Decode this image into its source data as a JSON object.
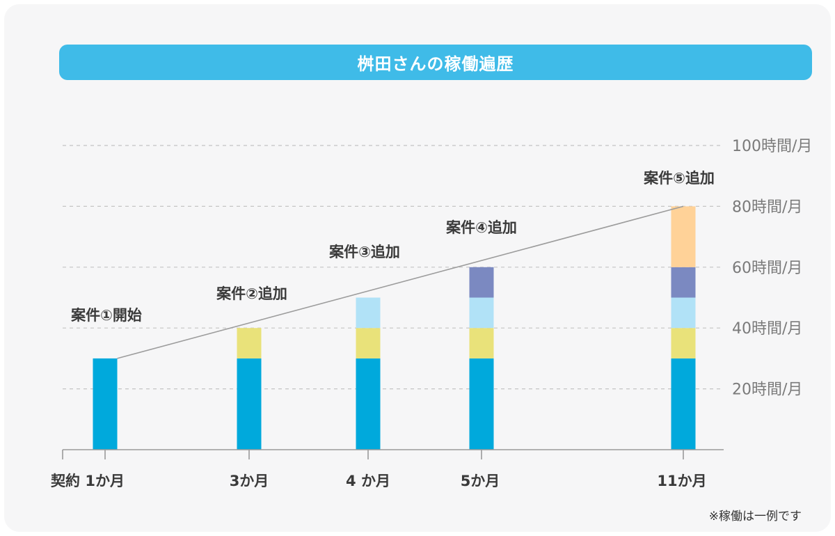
{
  "title": "桝田さんの稼働遍歴",
  "note": "※稼働は一例です",
  "chart_data": {
    "type": "bar",
    "stacked": true,
    "title": "桝田さんの稼働遍歴",
    "categories": [
      "契約 1か月",
      "3か月",
      "4 か月",
      "5か月",
      "11か月"
    ],
    "y_tick_labels": [
      "20時間/月",
      "40時間/月",
      "60時間/月",
      "80時間/月",
      "100時間/月"
    ],
    "y_ticks": [
      20,
      40,
      60,
      80,
      100
    ],
    "ylim": [
      0,
      100
    ],
    "grid": true,
    "series": [
      {
        "color": "#00a9dc",
        "values": [
          30,
          30,
          30,
          30,
          30
        ]
      },
      {
        "color": "#e9e27a",
        "values": [
          0,
          10,
          10,
          10,
          10
        ]
      },
      {
        "color": "#b1e2f7",
        "values": [
          0,
          0,
          10,
          10,
          10
        ]
      },
      {
        "color": "#7b89c1",
        "values": [
          0,
          0,
          0,
          10,
          10
        ]
      },
      {
        "color": "#ffd298",
        "values": [
          0,
          0,
          0,
          0,
          20
        ]
      }
    ],
    "annotations": [
      "案件①開始",
      "案件②追加",
      "案件③追加",
      "案件④追加",
      "案件⑤追加"
    ],
    "trend_line": true
  }
}
